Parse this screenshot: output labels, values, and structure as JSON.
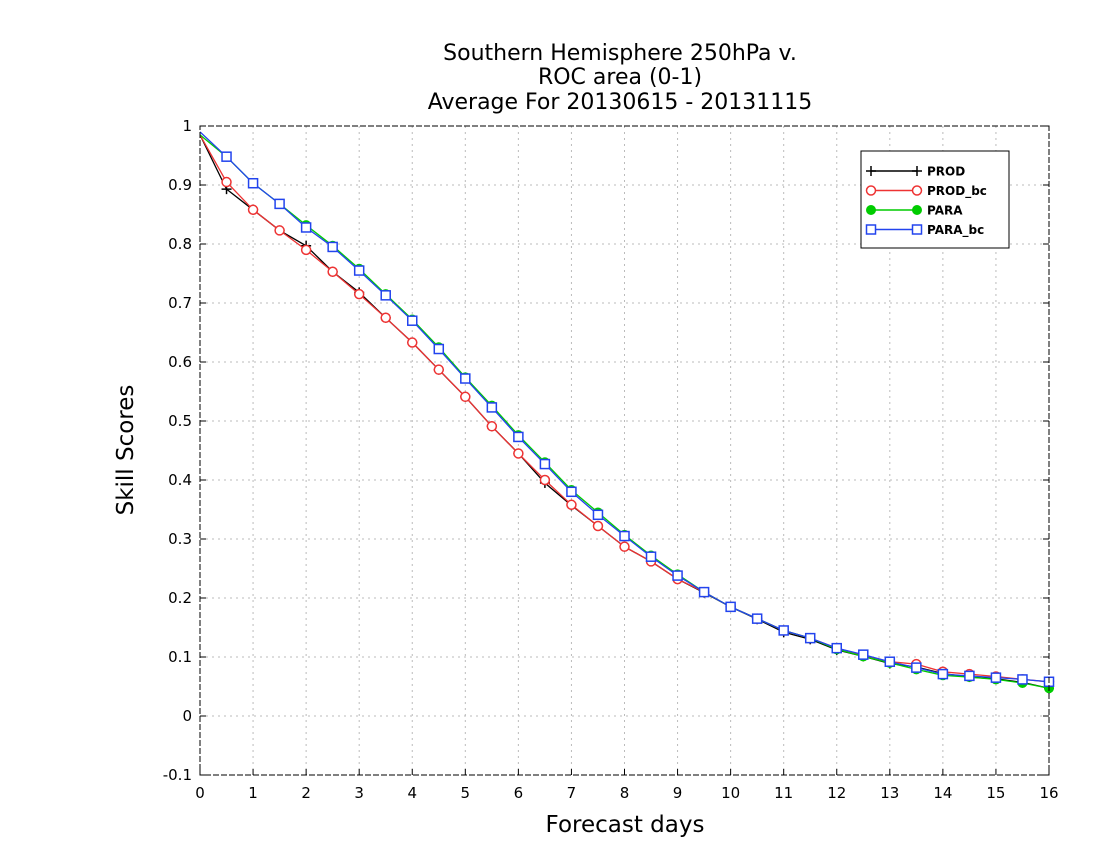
{
  "chart_data": {
    "type": "line",
    "title": [
      "Southern Hemisphere 250hPa v.",
      "ROC area (0-1)",
      "Average For 20130615 - 20131115"
    ],
    "xlabel": "Forecast days",
    "ylabel": "Skill Scores",
    "xlim": [
      0,
      16
    ],
    "ylim": [
      -0.1,
      1
    ],
    "xticks": [
      0,
      1,
      2,
      3,
      4,
      5,
      6,
      7,
      8,
      9,
      10,
      11,
      12,
      13,
      14,
      15,
      16
    ],
    "yticks": [
      -0.1,
      0,
      0.1,
      0.2,
      0.3,
      0.4,
      0.5,
      0.6,
      0.7,
      0.8,
      0.9,
      1
    ],
    "grid": true,
    "legend_position": "top-right",
    "x": [
      0,
      0.5,
      1,
      1.5,
      2,
      2.5,
      3,
      3.5,
      4,
      4.5,
      5,
      5.5,
      6,
      6.5,
      7,
      7.5,
      8,
      8.5,
      9,
      9.5,
      10,
      10.5,
      11,
      11.5,
      12,
      12.5,
      13,
      13.5,
      14,
      14.5,
      15,
      15.5,
      16
    ],
    "series": [
      {
        "name": "PROD",
        "color": "#000000",
        "marker": "plus",
        "values": [
          0.985,
          0.893,
          0.858,
          0.823,
          0.797,
          0.753,
          0.718,
          0.675,
          0.633,
          0.587,
          0.541,
          0.491,
          0.445,
          0.395,
          0.357,
          0.322,
          0.287,
          0.262,
          0.232,
          0.209,
          0.185,
          0.164,
          0.142,
          0.13,
          0.112,
          0.101,
          0.089,
          0.083,
          0.072,
          0.066,
          0.063,
          0.057,
          0.047
        ]
      },
      {
        "name": "PROD_bc",
        "color": "#ee3333",
        "marker": "circle-open",
        "values": [
          0.985,
          0.905,
          0.858,
          0.823,
          0.79,
          0.753,
          0.715,
          0.675,
          0.633,
          0.587,
          0.541,
          0.491,
          0.445,
          0.4,
          0.358,
          0.322,
          0.287,
          0.262,
          0.232,
          0.21,
          0.185,
          0.165,
          0.145,
          0.132,
          0.115,
          0.103,
          0.092,
          0.088,
          0.075,
          0.071,
          0.067,
          0.062,
          0.058
        ]
      },
      {
        "name": "PARA",
        "color": "#00cc00",
        "marker": "circle-filled",
        "values": [
          0.985,
          0.948,
          0.903,
          0.868,
          0.832,
          0.797,
          0.758,
          0.715,
          0.672,
          0.625,
          0.574,
          0.526,
          0.476,
          0.43,
          0.383,
          0.345,
          0.307,
          0.272,
          0.24,
          0.21,
          0.185,
          0.165,
          0.145,
          0.132,
          0.113,
          0.101,
          0.09,
          0.079,
          0.069,
          0.066,
          0.062,
          0.056,
          0.047
        ]
      },
      {
        "name": "PARA_bc",
        "color": "#2244ee",
        "marker": "square-open",
        "values": [
          0.99,
          0.948,
          0.903,
          0.868,
          0.828,
          0.795,
          0.755,
          0.713,
          0.67,
          0.622,
          0.572,
          0.523,
          0.473,
          0.427,
          0.38,
          0.341,
          0.305,
          0.27,
          0.238,
          0.21,
          0.185,
          0.165,
          0.145,
          0.132,
          0.115,
          0.104,
          0.092,
          0.082,
          0.071,
          0.068,
          0.065,
          0.062,
          0.058
        ]
      }
    ]
  }
}
